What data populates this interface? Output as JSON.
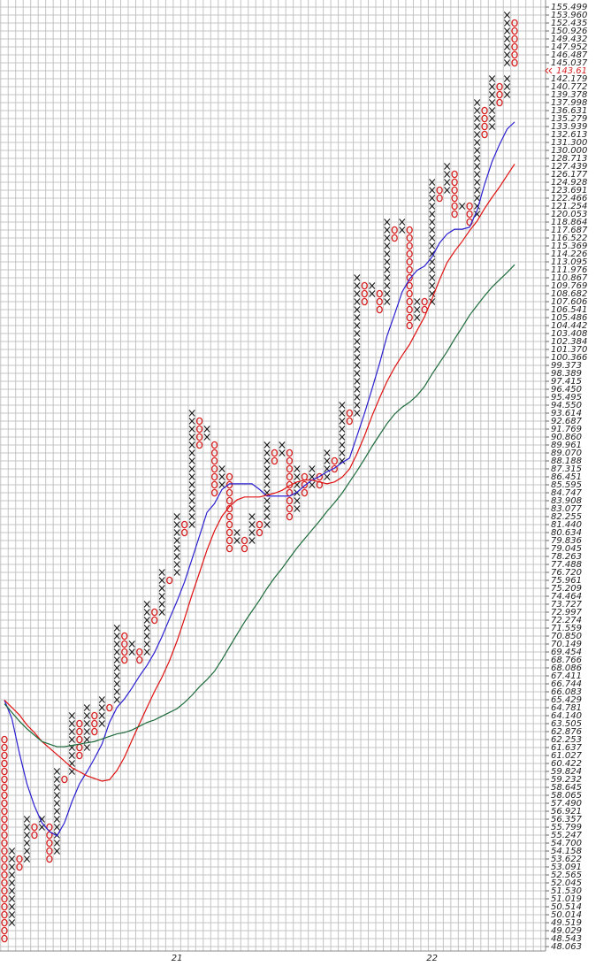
{
  "chart_data": {
    "type": "point_and_figure",
    "log_scale": true,
    "grid": true,
    "ylim": [
      48.063,
      155.499
    ],
    "yticks": [
      155.499,
      {
        "value": 153.96,
        "label": "153.960"
      },
      152.435,
      150.926,
      149.432,
      147.952,
      146.487,
      145.037,
      142.179,
      140.772,
      139.378,
      137.998,
      136.631,
      135.279,
      133.939,
      132.613,
      {
        "value": 131.3,
        "label": "131.300"
      },
      {
        "value": 130,
        "label": "130.000"
      },
      128.713,
      127.439,
      126.177,
      124.928,
      123.691,
      122.466,
      121.254,
      120.053,
      118.864,
      117.687,
      116.522,
      115.369,
      114.226,
      113.095,
      111.976,
      110.867,
      109.769,
      108.682,
      107.606,
      106.541,
      105.486,
      104.442,
      103.408,
      102.384,
      {
        "value": 101.37,
        "label": "101.370"
      },
      100.366,
      99.373,
      98.389,
      97.415,
      {
        "value": 96.45,
        "label": "96.450"
      },
      95.495,
      {
        "value": 94.55,
        "label": "94.550"
      },
      93.614,
      92.687,
      91.769,
      {
        "value": 90.86,
        "label": "90.860"
      },
      89.961,
      {
        "value": 89.07,
        "label": "89.070"
      },
      88.188,
      87.315,
      86.451,
      85.595,
      84.747,
      83.908,
      83.077,
      82.255,
      {
        "value": 81.44,
        "label": "81.440"
      },
      80.634,
      79.836,
      79.045,
      78.263,
      77.488,
      {
        "value": 76.72,
        "label": "76.720"
      },
      75.961,
      75.209,
      74.464,
      73.727,
      72.997,
      72.274,
      71.559,
      {
        "value": 70.85,
        "label": "70.850"
      },
      70.149,
      69.454,
      68.766,
      68.086,
      67.411,
      66.744,
      66.083,
      65.429,
      64.781,
      {
        "value": 64.14,
        "label": "64.140"
      },
      63.505,
      62.876,
      62.253,
      61.637,
      61.027,
      60.422,
      59.824,
      59.232,
      58.645,
      58.065,
      {
        "value": 57.49,
        "label": "57.490"
      },
      56.921,
      56.357,
      55.799,
      55.247,
      {
        "value": 54.7,
        "label": "54.700"
      },
      54.158,
      53.622,
      53.091,
      52.565,
      52.045,
      {
        "value": 51.53,
        "label": "51.530"
      },
      51.019,
      50.514,
      50.014,
      49.519,
      49.029,
      48.543,
      48.063
    ],
    "last_price": 143.61,
    "last_price_color": "#d62020",
    "x_labels": [
      "21",
      "22"
    ],
    "x_label_columns": [
      23,
      57
    ],
    "x_color": "#111111",
    "o_color": "#d62020",
    "columns": [
      {
        "type": "O",
        "high": 62.253,
        "low": 48.543
      },
      {
        "type": "X",
        "high": 54.158,
        "low": 49.519
      },
      {
        "type": "O",
        "high": 53.622,
        "low": 53.091
      },
      {
        "type": "X",
        "high": 56.357,
        "low": 53.622
      },
      {
        "type": "O",
        "high": 55.799,
        "low": 55.247
      },
      {
        "type": "X",
        "high": 56.357,
        "low": 55.799
      },
      {
        "type": "O",
        "high": 55.799,
        "low": 53.622
      },
      {
        "type": "X",
        "high": 59.824,
        "low": 54.158
      },
      {
        "type": "O",
        "high": 59.232,
        "low": 59.232
      },
      {
        "type": "X",
        "high": 64.14,
        "low": 59.824
      },
      {
        "type": "O",
        "high": 63.505,
        "low": 61.027
      },
      {
        "type": "X",
        "high": 64.781,
        "low": 61.637
      },
      {
        "type": "O",
        "high": 64.14,
        "low": 62.876
      },
      {
        "type": "X",
        "high": 65.429,
        "low": 63.505
      },
      {
        "type": "O",
        "high": 64.781,
        "low": 64.781
      },
      {
        "type": "X",
        "high": 71.559,
        "low": 65.429
      },
      {
        "type": "O",
        "high": 70.85,
        "low": 68.766
      },
      {
        "type": "X",
        "high": 70.149,
        "low": 69.454
      },
      {
        "type": "O",
        "high": 69.454,
        "low": 68.766
      },
      {
        "type": "X",
        "high": 73.727,
        "low": 69.454
      },
      {
        "type": "O",
        "high": 72.997,
        "low": 72.274
      },
      {
        "type": "X",
        "high": 76.72,
        "low": 72.997
      },
      {
        "type": "O",
        "high": 75.961,
        "low": 75.961
      },
      {
        "type": "X",
        "high": 82.255,
        "low": 76.72
      },
      {
        "type": "O",
        "high": 81.44,
        "low": 80.634
      },
      {
        "type": "X",
        "high": 93.614,
        "low": 81.44
      },
      {
        "type": "O",
        "high": 92.687,
        "low": 89.961
      },
      {
        "type": "X",
        "high": 91.769,
        "low": 90.86
      },
      {
        "type": "O",
        "high": 89.961,
        "low": 84.747
      },
      {
        "type": "X",
        "high": 87.315,
        "low": 85.595
      },
      {
        "type": "O",
        "high": 86.451,
        "low": 79.045
      },
      {
        "type": "X",
        "high": 80.634,
        "low": 79.836
      },
      {
        "type": "O",
        "high": 79.836,
        "low": 79.045
      },
      {
        "type": "X",
        "high": 82.255,
        "low": 79.836
      },
      {
        "type": "O",
        "high": 81.44,
        "low": 80.634
      },
      {
        "type": "X",
        "high": 89.961,
        "low": 81.44
      },
      {
        "type": "O",
        "high": 89.07,
        "low": 88.188
      },
      {
        "type": "X",
        "high": 89.961,
        "low": 89.07
      },
      {
        "type": "O",
        "high": 89.07,
        "low": 82.255
      },
      {
        "type": "X",
        "high": 87.315,
        "low": 83.077
      },
      {
        "type": "O",
        "high": 86.451,
        "low": 84.747
      },
      {
        "type": "X",
        "high": 87.315,
        "low": 85.595
      },
      {
        "type": "O",
        "high": 86.451,
        "low": 85.595
      },
      {
        "type": "X",
        "high": 89.07,
        "low": 86.451
      },
      {
        "type": "O",
        "high": 88.188,
        "low": 87.315
      },
      {
        "type": "X",
        "high": 94.55,
        "low": 88.188
      },
      {
        "type": "O",
        "high": 93.614,
        "low": 92.687
      },
      {
        "type": "X",
        "high": 110.867,
        "low": 93.614
      },
      {
        "type": "O",
        "high": 109.769,
        "low": 107.606
      },
      {
        "type": "X",
        "high": 109.769,
        "low": 108.682
      },
      {
        "type": "O",
        "high": 108.682,
        "low": 106.541
      },
      {
        "type": "X",
        "high": 118.864,
        "low": 107.606
      },
      {
        "type": "O",
        "high": 117.687,
        "low": 116.522
      },
      {
        "type": "X",
        "high": 118.864,
        "low": 117.687
      },
      {
        "type": "O",
        "high": 117.687,
        "low": 104.442
      },
      {
        "type": "X",
        "high": 107.606,
        "low": 105.486
      },
      {
        "type": "O",
        "high": 107.606,
        "low": 106.541
      },
      {
        "type": "X",
        "high": 124.928,
        "low": 107.606
      },
      {
        "type": "O",
        "high": 123.691,
        "low": 122.466
      },
      {
        "type": "X",
        "high": 127.439,
        "low": 123.691
      },
      {
        "type": "O",
        "high": 126.177,
        "low": 120.053
      },
      {
        "type": "X",
        "high": 121.254,
        "low": 121.254
      },
      {
        "type": "O",
        "high": 121.254,
        "low": 118.864
      },
      {
        "type": "X",
        "high": 137.998,
        "low": 120.053
      },
      {
        "type": "O",
        "high": 136.631,
        "low": 132.613
      },
      {
        "type": "X",
        "high": 142.179,
        "low": 133.939
      },
      {
        "type": "O",
        "high": 140.772,
        "low": 137.998
      },
      {
        "type": "X",
        "high": 153.96,
        "low": 139.378
      },
      {
        "type": "O",
        "high": 152.435,
        "low": 145.037
      }
    ],
    "series": [
      {
        "color": "#2a1fd0",
        "values": [
          65.4,
          63.9,
          61.2,
          58.9,
          57.3,
          56.1,
          55.5,
          55.2,
          56.1,
          57.6,
          58.9,
          59.8,
          60.8,
          61.9,
          63.6,
          64.8,
          65.5,
          66.4,
          67.4,
          68.3,
          69.4,
          70.8,
          72.4,
          74.0,
          75.8,
          78.0,
          80.3,
          82.7,
          83.6,
          85.1,
          85.7,
          85.7,
          85.7,
          85.7,
          85.1,
          84.4,
          84.4,
          84.4,
          84.4,
          84.8,
          85.5,
          86.1,
          86.5,
          87.0,
          87.4,
          88.0,
          88.5,
          91.0,
          93.6,
          96.5,
          99.6,
          103.1,
          105.9,
          108.9,
          110.7,
          111.9,
          112.5,
          113.8,
          115.8,
          117.1,
          117.8,
          117.8,
          118.1,
          120.6,
          124.6,
          128.2,
          131.0,
          133.5,
          134.7
        ]
      },
      {
        "color": "#e01010",
        "values": [
          65.4,
          64.8,
          64.2,
          63.4,
          62.8,
          62.1,
          61.6,
          61.1,
          60.6,
          60.1,
          59.8,
          59.5,
          59.3,
          59.1,
          59.2,
          59.9,
          60.9,
          62.2,
          63.5,
          64.8,
          66.1,
          67.3,
          68.7,
          70.4,
          72.4,
          74.6,
          76.7,
          78.9,
          80.8,
          82.3,
          83.3,
          84.0,
          84.3,
          84.3,
          84.3,
          84.5,
          84.7,
          85.0,
          85.5,
          85.9,
          86.1,
          86.1,
          85.9,
          85.7,
          85.9,
          86.4,
          87.3,
          89.0,
          91.0,
          93.3,
          95.4,
          97.4,
          99.1,
          100.6,
          102.0,
          103.8,
          105.6,
          108.0,
          110.6,
          113.0,
          114.6,
          116.0,
          117.6,
          119.0,
          120.9,
          122.6,
          124.2,
          126.0,
          127.8
        ]
      },
      {
        "color": "#1d6b3a",
        "values": [
          65.1,
          64.4,
          63.7,
          63.1,
          62.6,
          62.1,
          61.9,
          61.7,
          61.7,
          61.8,
          61.9,
          62.0,
          62.1,
          62.3,
          62.5,
          62.7,
          62.8,
          63.0,
          63.3,
          63.6,
          63.8,
          64.1,
          64.4,
          64.7,
          65.2,
          65.8,
          66.5,
          67.1,
          67.8,
          68.8,
          69.9,
          71.0,
          72.1,
          73.1,
          74.1,
          75.2,
          76.2,
          77.1,
          78.1,
          79.1,
          80.0,
          80.9,
          81.8,
          82.8,
          83.7,
          84.7,
          85.9,
          87.1,
          88.4,
          89.8,
          91.1,
          92.4,
          93.5,
          94.3,
          94.9,
          95.7,
          96.8,
          98.3,
          99.7,
          101.1,
          102.7,
          104.2,
          105.8,
          107.1,
          108.4,
          109.6,
          110.6,
          111.6,
          112.7
        ]
      }
    ]
  }
}
